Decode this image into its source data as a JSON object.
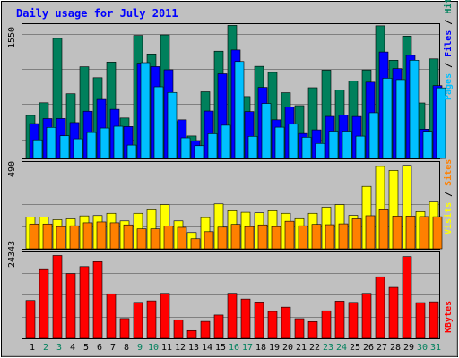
{
  "chart_data": [
    {
      "type": "bar",
      "title": "Daily usage for July 2011",
      "ymax_label": "1550",
      "side_labels": [
        "Pages",
        "/",
        "Files",
        "/",
        "Hits"
      ],
      "side_colors": [
        "#00c0ff",
        "#000000",
        "#0000ff",
        "#000000",
        "#00805c"
      ],
      "x": [
        1,
        2,
        3,
        4,
        5,
        6,
        7,
        8,
        9,
        10,
        11,
        12,
        13,
        14,
        15,
        16,
        17,
        18,
        19,
        20,
        21,
        22,
        23,
        24,
        25,
        26,
        27,
        28,
        29,
        30,
        31
      ],
      "series": [
        {
          "name": "Hits",
          "color": "#00805c",
          "values": [
            500,
            647,
            1395,
            752,
            1065,
            938,
            1120,
            470,
            1429,
            1214,
            1435,
            428,
            261,
            775,
            1246,
            1546,
            719,
            1070,
            999,
            764,
            614,
            822,
            1026,
            795,
            898,
            1028,
            1541,
            1141,
            1422,
            645,
            1157
          ]
        },
        {
          "name": "Files",
          "color": "#0000ff",
          "values": [
            405,
            463,
            464,
            417,
            549,
            686,
            571,
            371,
            1107,
            1067,
            1030,
            449,
            205,
            551,
            983,
            1260,
            545,
            826,
            449,
            599,
            290,
            332,
            489,
            505,
            488,
            886,
            1237,
            1044,
            1198,
            340,
            846
          ]
        },
        {
          "name": "Pages",
          "color": "#00c0ff",
          "values": [
            216,
            361,
            263,
            228,
            301,
            353,
            374,
            155,
            1113,
            832,
            767,
            239,
            148,
            287,
            386,
            1126,
            257,
            639,
            363,
            398,
            246,
            174,
            317,
            317,
            259,
            531,
            932,
            916,
            1141,
            315,
            820
          ]
        }
      ]
    },
    {
      "type": "bar",
      "ymax_label": "490",
      "side_labels": [
        "Visits",
        "/",
        "Sites"
      ],
      "side_colors": [
        "#ffff00",
        "#000000",
        "#ff8000"
      ],
      "x": [
        1,
        2,
        3,
        4,
        5,
        6,
        7,
        8,
        9,
        10,
        11,
        12,
        13,
        14,
        15,
        16,
        17,
        18,
        19,
        20,
        21,
        22,
        23,
        24,
        25,
        26,
        27,
        28,
        29,
        30,
        31
      ],
      "series": [
        {
          "name": "Visits",
          "color": "#ffff00",
          "values": [
            183,
            183,
            168,
            173,
            190,
            192,
            205,
            161,
            205,
            225,
            255,
            161,
            94,
            180,
            259,
            220,
            211,
            208,
            220,
            205,
            174,
            205,
            240,
            255,
            193,
            360,
            475,
            452,
            481,
            215,
            270
          ]
        },
        {
          "name": "Sites",
          "color": "#ff8000",
          "values": [
            143,
            143,
            128,
            133,
            150,
            155,
            150,
            138,
            115,
            115,
            131,
            124,
            58,
            99,
            125,
            141,
            128,
            138,
            128,
            159,
            133,
            141,
            139,
            144,
            173,
            191,
            225,
            189,
            189,
            186,
            185
          ]
        }
      ]
    },
    {
      "type": "bar",
      "ymax_label": "24343",
      "side_labels": [
        "KBytes"
      ],
      "side_colors": [
        "#ff0000"
      ],
      "x": [
        1,
        2,
        3,
        4,
        5,
        6,
        7,
        8,
        9,
        10,
        11,
        12,
        13,
        14,
        15,
        16,
        17,
        18,
        19,
        20,
        21,
        22,
        23,
        24,
        25,
        26,
        27,
        28,
        29,
        30,
        31
      ],
      "series": [
        {
          "name": "KBytes",
          "color": "#ff0000",
          "values": [
            10944,
            19896,
            23960,
            18752,
            20768,
            22184,
            12880,
            5728,
            10400,
            10848,
            13008,
            5368,
            2256,
            4896,
            6752,
            13024,
            11360,
            10520,
            7776,
            9024,
            5696,
            4832,
            7968,
            10776,
            10400,
            13008,
            17808,
            14752,
            23656,
            10344,
            10584
          ]
        }
      ]
    }
  ],
  "day_colors": {
    "weekday": "#000000",
    "weekend": "#00805c"
  },
  "weekend_days": [
    2,
    3,
    9,
    10,
    16,
    17,
    23,
    24,
    30,
    31
  ]
}
